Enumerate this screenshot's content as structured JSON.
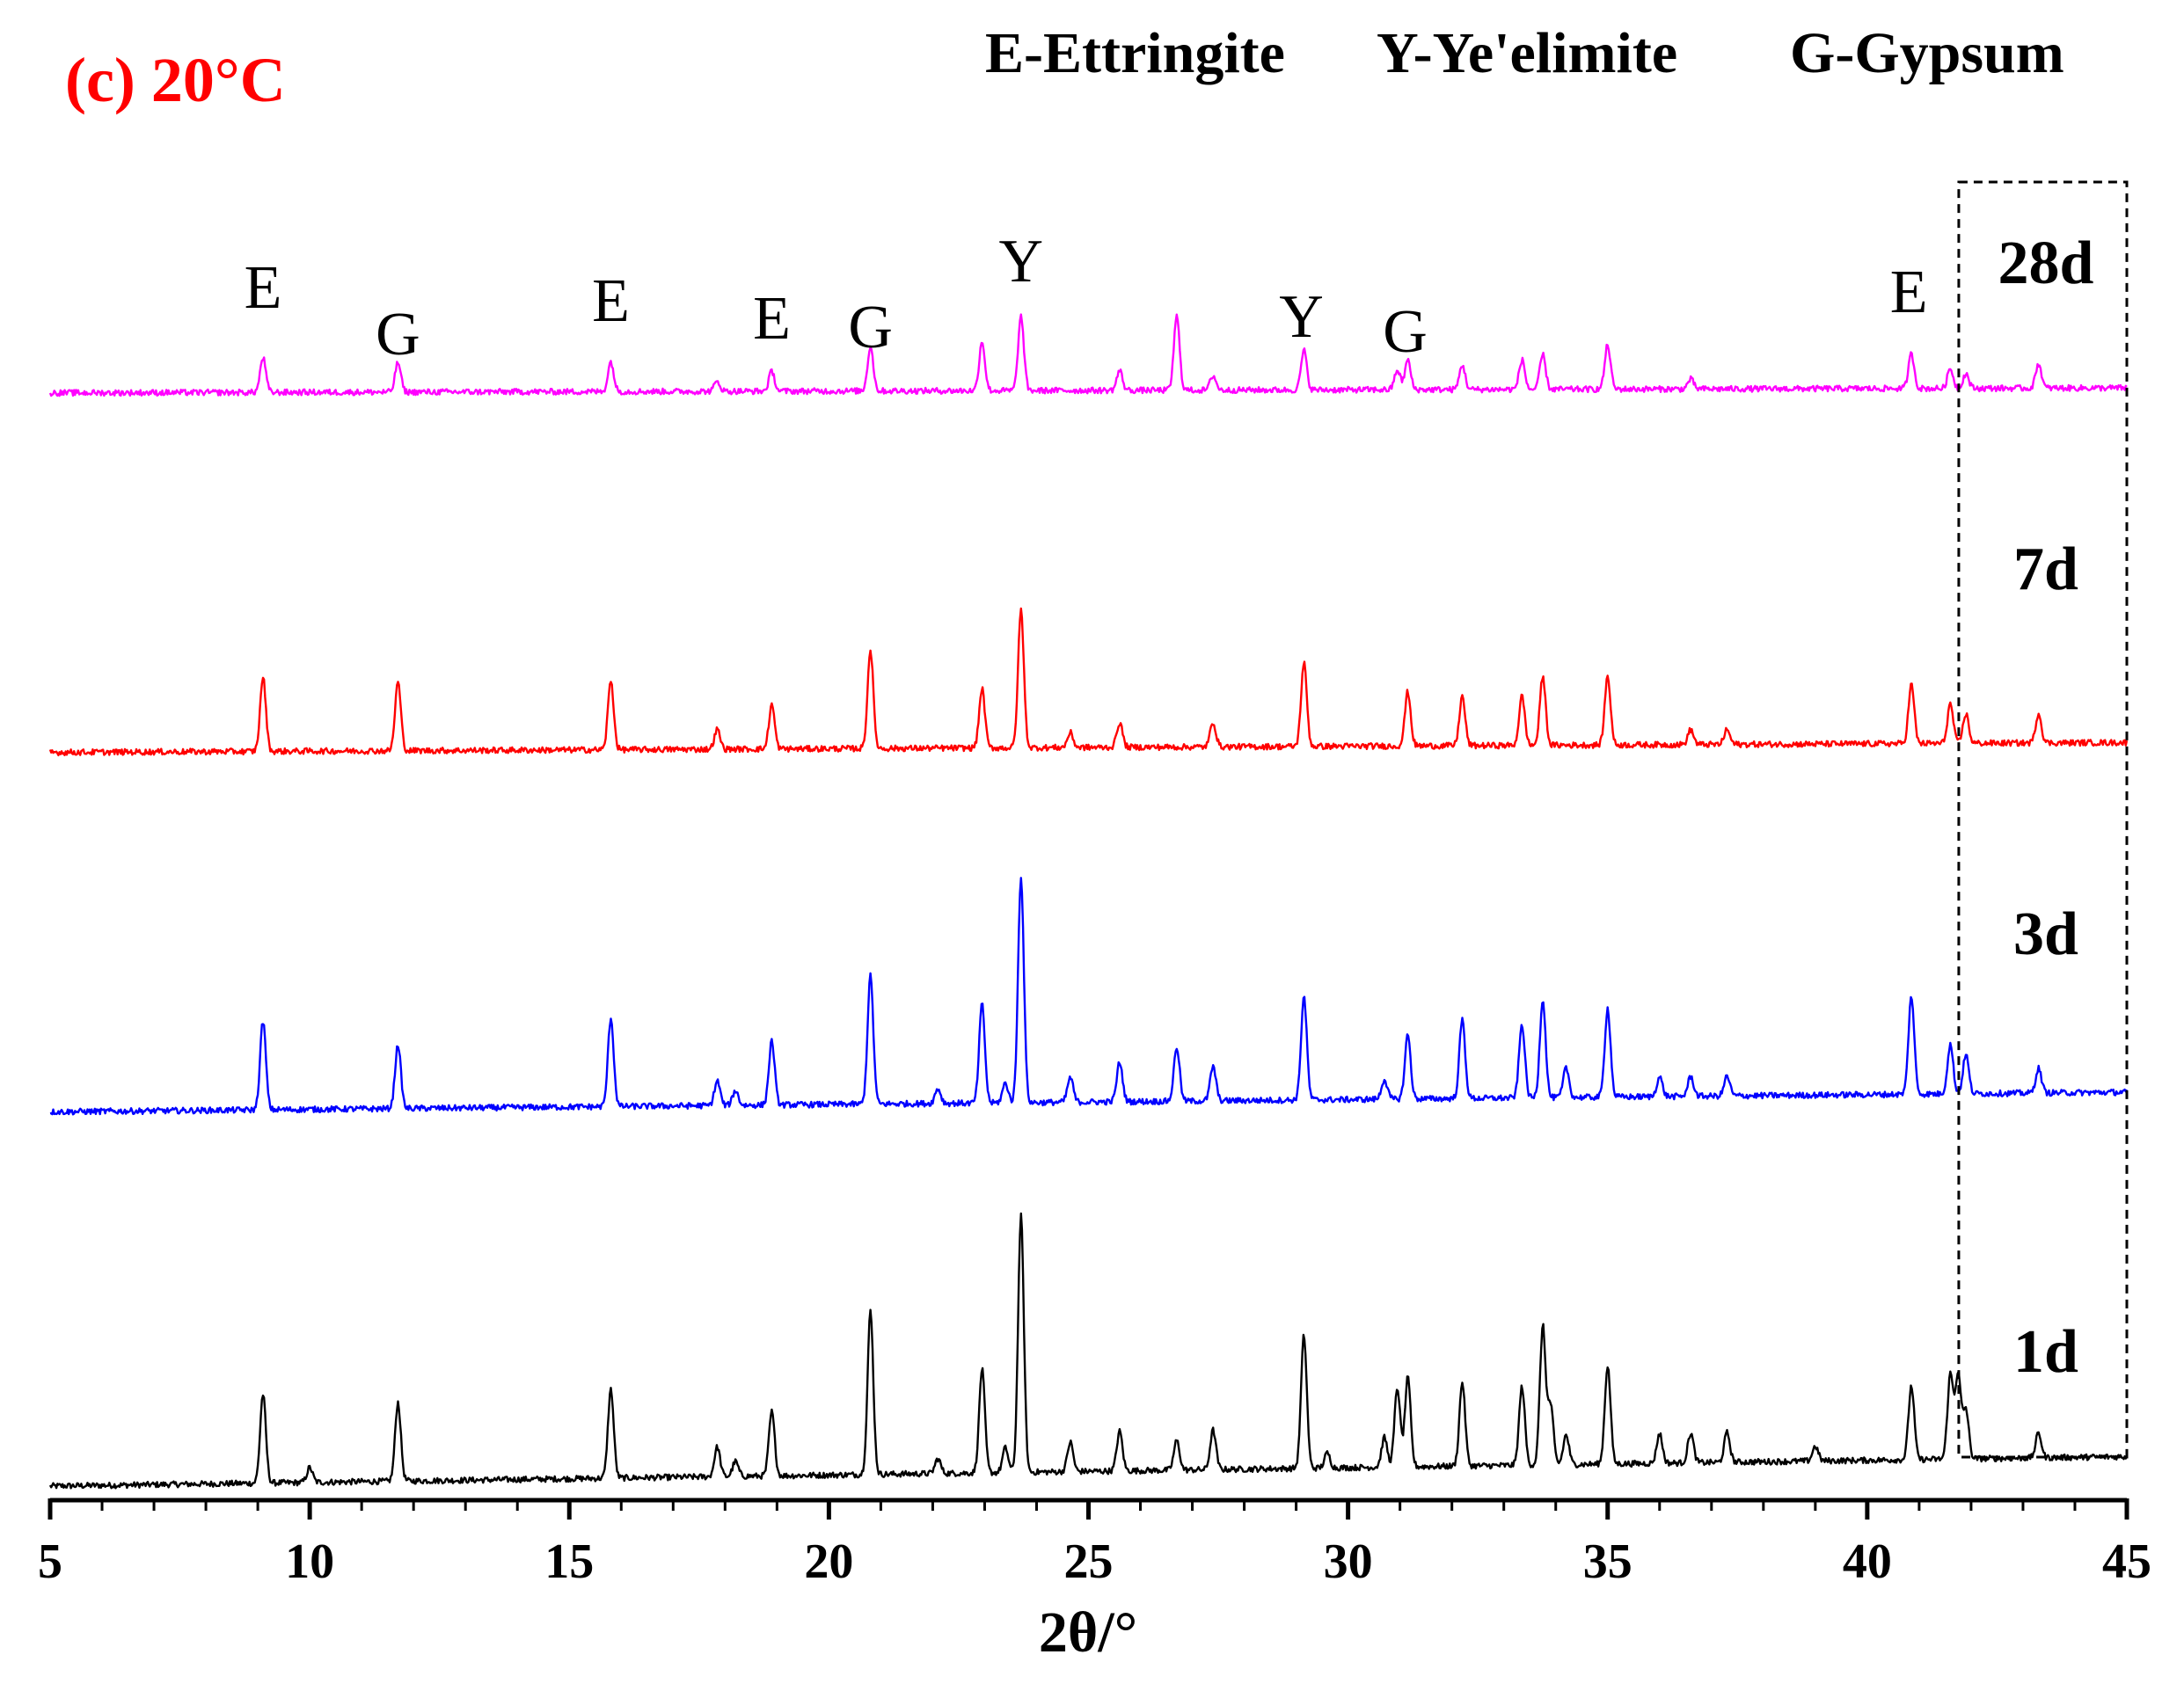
{
  "chart_data": {
    "type": "line",
    "panel_label": "(c) 20°C",
    "legend": [
      "E-Ettringite",
      "Y-Ye'elimite",
      "G-Gypsum"
    ],
    "xlabel": "2θ/°",
    "ylabel": "",
    "xlim": [
      5,
      45
    ],
    "x_ticks": [
      5,
      10,
      15,
      20,
      25,
      30,
      35,
      40,
      45
    ],
    "y_axis_visible": false,
    "legend_placement": "top-right",
    "highlight_region": {
      "x_from": 42,
      "x_to": 45,
      "style": "dashed box"
    },
    "colors": {
      "panel_label": "#ff0000",
      "1d": "#000000",
      "3d": "#0000ff",
      "7d": "#ff0000",
      "28d": "#ff00ff"
    },
    "peak_labels": [
      {
        "text": "E",
        "x": 9.1
      },
      {
        "text": "G",
        "x": 11.7
      },
      {
        "text": "E",
        "x": 15.8
      },
      {
        "text": "E",
        "x": 18.9
      },
      {
        "text": "G",
        "x": 20.8
      },
      {
        "text": "Y",
        "x": 23.7
      },
      {
        "text": "Y",
        "x": 29.1
      },
      {
        "text": "G",
        "x": 31.1
      },
      {
        "text": "E",
        "x": 40.8
      }
    ],
    "series": [
      {
        "name": "1d",
        "color": "#000000",
        "baseline": 0.0,
        "background": {
          "start": 0.0,
          "end": 0.06
        },
        "peaks": [
          [
            9.1,
            0.18
          ],
          [
            10.0,
            0.03
          ],
          [
            11.7,
            0.16
          ],
          [
            15.8,
            0.18
          ],
          [
            17.85,
            0.06
          ],
          [
            18.2,
            0.03
          ],
          [
            18.9,
            0.13
          ],
          [
            20.8,
            0.33
          ],
          [
            22.1,
            0.03
          ],
          [
            22.95,
            0.21
          ],
          [
            23.4,
            0.05
          ],
          [
            23.7,
            0.52
          ],
          [
            24.65,
            0.06
          ],
          [
            25.6,
            0.08
          ],
          [
            26.7,
            0.06
          ],
          [
            27.4,
            0.08
          ],
          [
            29.15,
            0.27
          ],
          [
            29.6,
            0.03
          ],
          [
            30.7,
            0.06
          ],
          [
            30.95,
            0.16
          ],
          [
            31.15,
            0.18
          ],
          [
            32.2,
            0.17
          ],
          [
            33.35,
            0.16
          ],
          [
            33.75,
            0.28
          ],
          [
            33.9,
            0.12
          ],
          [
            34.2,
            0.06
          ],
          [
            35.0,
            0.2
          ],
          [
            36.0,
            0.06
          ],
          [
            36.6,
            0.06
          ],
          [
            37.3,
            0.06
          ],
          [
            39.0,
            0.03
          ],
          [
            40.85,
            0.15
          ],
          [
            41.6,
            0.17
          ],
          [
            41.75,
            0.17
          ],
          [
            41.9,
            0.1
          ],
          [
            43.3,
            0.05
          ]
        ]
      },
      {
        "name": "3d",
        "color": "#0000ff",
        "baseline": 0.76,
        "background": {
          "start": 0.0,
          "end": 0.04
        },
        "peaks": [
          [
            9.1,
            0.18
          ],
          [
            11.7,
            0.13
          ],
          [
            15.8,
            0.18
          ],
          [
            17.85,
            0.05
          ],
          [
            18.2,
            0.03
          ],
          [
            18.9,
            0.13
          ],
          [
            20.8,
            0.26
          ],
          [
            22.1,
            0.03
          ],
          [
            22.95,
            0.2
          ],
          [
            23.4,
            0.04
          ],
          [
            23.7,
            0.46
          ],
          [
            24.65,
            0.05
          ],
          [
            25.6,
            0.08
          ],
          [
            26.7,
            0.11
          ],
          [
            27.4,
            0.07
          ],
          [
            29.15,
            0.21
          ],
          [
            30.7,
            0.04
          ],
          [
            31.15,
            0.13
          ],
          [
            32.2,
            0.16
          ],
          [
            33.35,
            0.15
          ],
          [
            33.75,
            0.2
          ],
          [
            34.2,
            0.06
          ],
          [
            35.0,
            0.18
          ],
          [
            36.0,
            0.04
          ],
          [
            36.6,
            0.04
          ],
          [
            37.3,
            0.04
          ],
          [
            40.85,
            0.2
          ],
          [
            41.6,
            0.1
          ],
          [
            41.9,
            0.08
          ],
          [
            43.3,
            0.05
          ]
        ]
      },
      {
        "name": "7d",
        "color": "#ff0000",
        "baseline": 1.49,
        "background": {
          "start": 0.0,
          "end": 0.02
        },
        "peaks": [
          [
            9.1,
            0.15
          ],
          [
            11.7,
            0.14
          ],
          [
            15.8,
            0.14
          ],
          [
            17.85,
            0.04
          ],
          [
            18.9,
            0.09
          ],
          [
            20.8,
            0.2
          ],
          [
            22.95,
            0.12
          ],
          [
            23.7,
            0.28
          ],
          [
            24.65,
            0.03
          ],
          [
            25.6,
            0.05
          ],
          [
            27.4,
            0.05
          ],
          [
            29.15,
            0.17
          ],
          [
            31.15,
            0.11
          ],
          [
            32.2,
            0.1
          ],
          [
            33.35,
            0.1
          ],
          [
            33.75,
            0.14
          ],
          [
            35.0,
            0.14
          ],
          [
            36.6,
            0.03
          ],
          [
            37.3,
            0.03
          ],
          [
            40.85,
            0.12
          ],
          [
            41.6,
            0.08
          ],
          [
            41.9,
            0.06
          ],
          [
            43.3,
            0.06
          ]
        ]
      },
      {
        "name": "28d",
        "color": "#ff00ff",
        "baseline": 2.22,
        "background": {
          "start": 0.0,
          "end": 0.01
        },
        "peaks": [
          [
            9.1,
            0.07
          ],
          [
            11.7,
            0.06
          ],
          [
            15.8,
            0.06
          ],
          [
            17.85,
            0.02
          ],
          [
            18.9,
            0.04
          ],
          [
            20.8,
            0.09
          ],
          [
            22.95,
            0.1
          ],
          [
            23.7,
            0.15
          ],
          [
            25.6,
            0.04
          ],
          [
            26.7,
            0.15
          ],
          [
            27.4,
            0.03
          ],
          [
            29.15,
            0.08
          ],
          [
            30.95,
            0.04
          ],
          [
            31.15,
            0.06
          ],
          [
            32.2,
            0.05
          ],
          [
            33.35,
            0.06
          ],
          [
            33.75,
            0.07
          ],
          [
            35.0,
            0.09
          ],
          [
            36.6,
            0.02
          ],
          [
            40.85,
            0.07
          ],
          [
            41.6,
            0.04
          ],
          [
            41.9,
            0.03
          ],
          [
            43.3,
            0.05
          ]
        ]
      }
    ]
  }
}
